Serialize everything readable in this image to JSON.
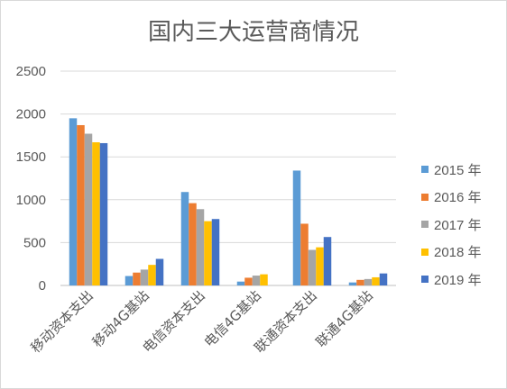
{
  "chart_data": {
    "type": "bar",
    "title": "国内三大运营商情况",
    "categories": [
      "移动资本支出",
      "移动4G基站",
      "电信资本支出",
      "电信4G基站",
      "联通资本支出",
      "联通4G基站"
    ],
    "series": [
      {
        "name": "2015 年",
        "color": "#5b9bd5",
        "values": [
          1950,
          110,
          1090,
          45,
          1340,
          35
        ]
      },
      {
        "name": "2016 年",
        "color": "#ed7d31",
        "values": [
          1870,
          150,
          960,
          90,
          720,
          65
        ]
      },
      {
        "name": "2017 年",
        "color": "#a5a5a5",
        "values": [
          1770,
          185,
          890,
          115,
          415,
          75
        ]
      },
      {
        "name": "2018 年",
        "color": "#ffc000",
        "values": [
          1670,
          240,
          750,
          130,
          445,
          95
        ]
      },
      {
        "name": "2019 年",
        "color": "#4472c4",
        "values": [
          1660,
          310,
          775,
          null,
          565,
          140
        ]
      }
    ],
    "yticks": [
      "0",
      "500",
      "1000",
      "1500",
      "2000",
      "2500"
    ],
    "ylim": [
      0,
      2500
    ],
    "grid": true,
    "legend_position": "right"
  }
}
